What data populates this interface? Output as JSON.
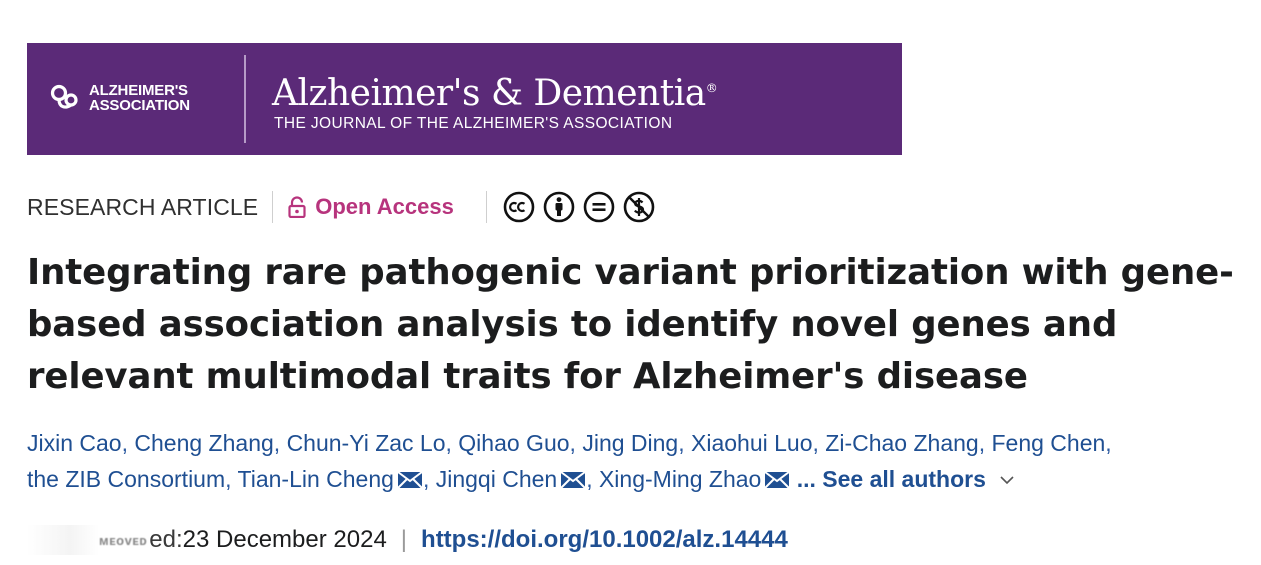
{
  "banner": {
    "association_line1": "ALZHEIMER'S",
    "association_line2": "ASSOCIATION",
    "journal_title": "Alzheimer's & Dementia",
    "reg_mark": "®",
    "journal_subtitle": "THE JOURNAL OF THE ALZHEIMER'S ASSOCIATION",
    "colors": {
      "background": "#5b2a78",
      "text": "#ffffff"
    }
  },
  "meta": {
    "article_type": "RESEARCH ARTICLE",
    "open_access_label": "Open Access",
    "license_icons": [
      "cc-icon",
      "by-attribution-icon",
      "nd-no-derivatives-icon",
      "nc-noncommercial-icon"
    ],
    "accent_color": "#b7347d"
  },
  "article": {
    "title": "Integrating rare pathogenic variant prioritization with gene-based association analysis to identify novel genes and relevant multimodal traits for Alzheimer's disease"
  },
  "authors": {
    "list": [
      {
        "name": "Jixin Cao",
        "corresponding": false
      },
      {
        "name": "Cheng Zhang",
        "corresponding": false
      },
      {
        "name": "Chun-Yi Zac Lo",
        "corresponding": false
      },
      {
        "name": "Qihao Guo",
        "corresponding": false
      },
      {
        "name": "Jing Ding",
        "corresponding": false
      },
      {
        "name": "Xiaohui Luo",
        "corresponding": false
      },
      {
        "name": "Zi-Chao Zhang",
        "corresponding": false
      },
      {
        "name": "Feng Chen",
        "corresponding": false
      },
      {
        "name": "the ZIB Consortium",
        "corresponding": false
      },
      {
        "name": "Tian-Lin Cheng",
        "corresponding": true
      },
      {
        "name": "Jingqi Chen",
        "corresponding": true
      },
      {
        "name": "Xing-Ming Zhao",
        "corresponding": true
      }
    ],
    "see_all_label": "... See all authors",
    "link_color": "#1f4f92"
  },
  "publication": {
    "obscured_prefix": "ᴍᴇᴏᴠᴇᴅ",
    "date_label": "ed: ",
    "date_value": "23 December 2024",
    "separator": "|",
    "doi": "https://doi.org/10.1002/alz.14444"
  }
}
